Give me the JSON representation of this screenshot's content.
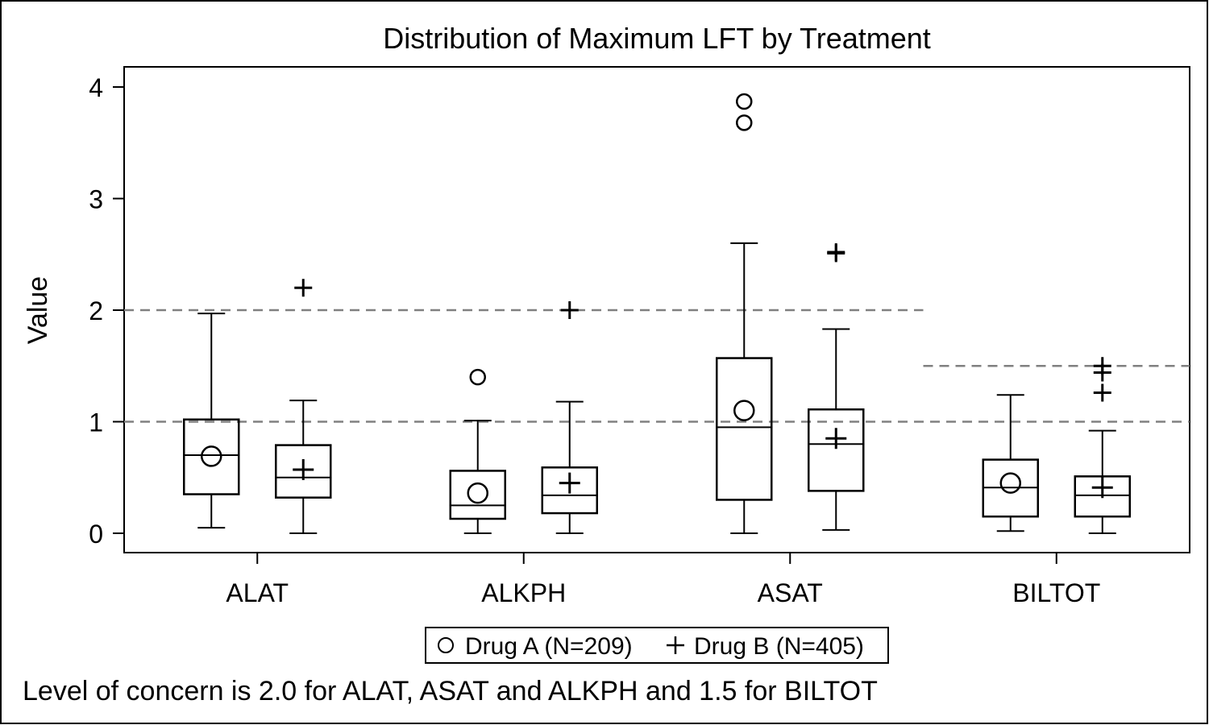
{
  "chart_data": {
    "type": "box",
    "title": "Distribution of Maximum LFT by Treatment",
    "xlabel": "",
    "ylabel": "Value",
    "ylim": [
      -0.18,
      4.1
    ],
    "yticks": [
      0,
      1,
      2,
      3,
      4
    ],
    "categories": [
      "ALAT",
      "ALKPH",
      "ASAT",
      "BILTOT"
    ],
    "grid": false,
    "legend_position": "bottom",
    "series": [
      {
        "name": "Drug A (N=209)",
        "marker": "circle",
        "boxes": [
          {
            "category": "ALAT",
            "whisker_low": 0.05,
            "q1": 0.35,
            "median": 0.7,
            "q3": 1.02,
            "whisker_high": 1.97,
            "mean": 0.69,
            "outliers": []
          },
          {
            "category": "ALKPH",
            "whisker_low": 0.0,
            "q1": 0.13,
            "median": 0.25,
            "q3": 0.56,
            "whisker_high": 1.01,
            "mean": 0.36,
            "outliers": [
              1.4
            ]
          },
          {
            "category": "ASAT",
            "whisker_low": 0.0,
            "q1": 0.3,
            "median": 0.95,
            "q3": 1.57,
            "whisker_high": 2.6,
            "mean": 1.1,
            "outliers": [
              3.68,
              3.87
            ]
          },
          {
            "category": "BILTOT",
            "whisker_low": 0.02,
            "q1": 0.15,
            "median": 0.41,
            "q3": 0.66,
            "whisker_high": 1.24,
            "mean": 0.45,
            "outliers": []
          }
        ]
      },
      {
        "name": "Drug B (N=405)",
        "marker": "plus",
        "boxes": [
          {
            "category": "ALAT",
            "whisker_low": 0.0,
            "q1": 0.32,
            "median": 0.5,
            "q3": 0.79,
            "whisker_high": 1.19,
            "mean": 0.57,
            "outliers": [
              2.2
            ]
          },
          {
            "category": "ALKPH",
            "whisker_low": 0.0,
            "q1": 0.18,
            "median": 0.34,
            "q3": 0.59,
            "whisker_high": 1.18,
            "mean": 0.45,
            "outliers": [
              2.0
            ]
          },
          {
            "category": "ASAT",
            "whisker_low": 0.03,
            "q1": 0.38,
            "median": 0.8,
            "q3": 1.11,
            "whisker_high": 1.83,
            "mean": 0.85,
            "outliers": [
              2.51,
              2.52
            ]
          },
          {
            "category": "BILTOT",
            "whisker_low": 0.0,
            "q1": 0.15,
            "median": 0.34,
            "q3": 0.51,
            "whisker_high": 0.92,
            "mean": 0.41,
            "outliers": [
              1.26,
              1.44,
              1.5
            ]
          }
        ]
      }
    ],
    "reference_lines": [
      {
        "value": 2.0,
        "categories": [
          "ALAT",
          "ALKPH",
          "ASAT"
        ]
      },
      {
        "value": 1.5,
        "categories": [
          "BILTOT"
        ]
      },
      {
        "value": 1.0,
        "categories": [
          "ALAT",
          "ALKPH",
          "ASAT",
          "BILTOT"
        ]
      }
    ],
    "footnote": "Level of concern is 2.0 for ALAT, ASAT and ALKPH and 1.5 for BILTOT",
    "colors": {
      "line": "#000000",
      "reference": "#808080",
      "background": "#ffffff"
    }
  }
}
